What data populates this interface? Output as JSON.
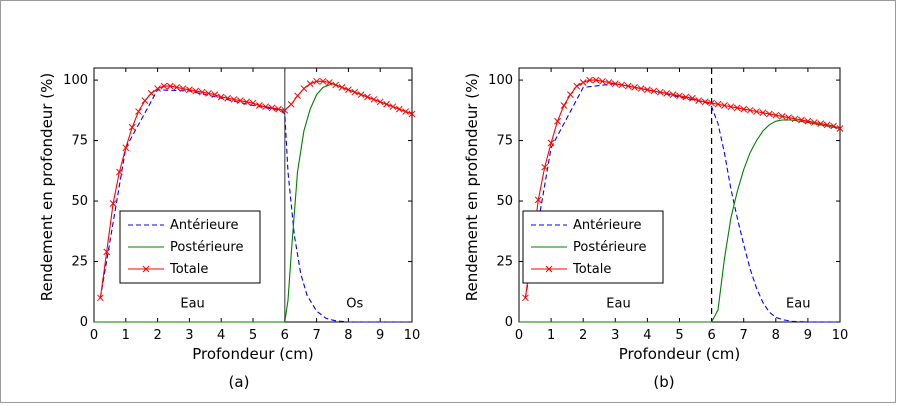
{
  "chart_data": [
    {
      "type": "line",
      "panel_label": "(a)",
      "xlabel": "Profondeur (cm)",
      "ylabel": "Rendement en profondeur (%)",
      "xlim": [
        0,
        10
      ],
      "ylim": [
        0,
        105
      ],
      "xticks": [
        0,
        1,
        2,
        3,
        4,
        5,
        6,
        7,
        8,
        9,
        10
      ],
      "yticks": [
        0,
        25,
        50,
        75,
        100
      ],
      "grid": false,
      "legend_position": "lower-left",
      "interface": {
        "x": 6,
        "style": "solid"
      },
      "region_labels": [
        {
          "text": "Eau",
          "x": 3.1,
          "y": 6
        },
        {
          "text": "Os",
          "x": 8.2,
          "y": 6
        }
      ],
      "series": [
        {
          "name": "Antérieure",
          "color": "#0000ff",
          "style": "dashed",
          "x": [
            0.2,
            1,
            2,
            3,
            4,
            5,
            5.9,
            6.0,
            6.1,
            6.3,
            6.5,
            6.7,
            7.0,
            7.3,
            7.6,
            8.0,
            9.0,
            10.0
          ],
          "y": [
            10,
            72,
            96,
            95.5,
            92.5,
            89.5,
            87.5,
            86,
            62,
            36,
            20,
            11,
            4.5,
            1.5,
            0.5,
            0,
            0,
            0
          ]
        },
        {
          "name": "Postérieure",
          "color": "#007f00",
          "style": "solid",
          "x": [
            0,
            5.9,
            6.0,
            6.1,
            6.2,
            6.4,
            6.6,
            6.8,
            7.0,
            7.2,
            7.5,
            8.0,
            9.0,
            10.0
          ],
          "y": [
            0,
            0,
            0,
            9,
            28,
            62,
            79,
            88,
            94,
            97,
            98.5,
            96,
            91,
            86
          ]
        },
        {
          "name": "Totale",
          "color": "#ff0000",
          "style": "solid-x",
          "x": [
            0.2,
            0.4,
            0.6,
            0.8,
            1.0,
            1.2,
            1.4,
            1.6,
            1.8,
            2.0,
            2.2,
            2.4,
            2.6,
            2.8,
            3.0,
            3.2,
            3.4,
            3.6,
            3.8,
            4.0,
            4.2,
            4.4,
            4.6,
            4.8,
            5.0,
            5.2,
            5.4,
            5.6,
            5.8,
            6.0,
            6.2,
            6.4,
            6.6,
            6.8,
            7.0,
            7.2,
            7.4,
            7.6,
            7.8,
            8.0,
            8.2,
            8.4,
            8.6,
            8.8,
            9.0,
            9.2,
            9.4,
            9.6,
            9.8,
            10.0
          ],
          "y": [
            10,
            29,
            49,
            62,
            72,
            80.5,
            87,
            91.5,
            94.5,
            96.5,
            97.5,
            97.5,
            97,
            96.5,
            96,
            95.5,
            95,
            94.5,
            94,
            93,
            92.5,
            92,
            91.5,
            91,
            90.5,
            89.5,
            89,
            88.5,
            88,
            87.5,
            90,
            93.5,
            96.5,
            98.5,
            99.5,
            99.5,
            99,
            98,
            97,
            96,
            95,
            94,
            93,
            92,
            91,
            90,
            89,
            88,
            87,
            86
          ]
        }
      ]
    },
    {
      "type": "line",
      "panel_label": "(b)",
      "xlabel": "Profondeur (cm)",
      "ylabel": "Rendement en profondeur (%)",
      "xlim": [
        0,
        10
      ],
      "ylim": [
        0,
        105
      ],
      "xticks": [
        0,
        1,
        2,
        3,
        4,
        5,
        6,
        7,
        8,
        9,
        10
      ],
      "yticks": [
        0,
        25,
        50,
        75,
        100
      ],
      "grid": false,
      "legend_position": "lower-left",
      "interface": {
        "x": 6,
        "style": "dashed"
      },
      "region_labels": [
        {
          "text": "Eau",
          "x": 3.1,
          "y": 6
        },
        {
          "text": "Eau",
          "x": 8.7,
          "y": 6
        }
      ],
      "series": [
        {
          "name": "Antérieure",
          "color": "#0000ff",
          "style": "dashed",
          "x": [
            0.2,
            1,
            2,
            3,
            4,
            5,
            5.9,
            6.0,
            6.2,
            6.4,
            6.6,
            6.8,
            7.0,
            7.2,
            7.4,
            7.6,
            7.8,
            8.0,
            8.2,
            8.5,
            9.0,
            10.0
          ],
          "y": [
            10,
            72,
            97,
            98.5,
            96,
            93,
            90.5,
            89,
            82,
            70,
            55,
            43,
            32,
            22,
            14,
            8,
            4,
            2,
            1,
            0.3,
            0,
            0
          ]
        },
        {
          "name": "Postérieure",
          "color": "#007f00",
          "style": "solid",
          "x": [
            0,
            5.9,
            6.0,
            6.2,
            6.4,
            6.6,
            6.8,
            7.0,
            7.2,
            7.4,
            7.6,
            7.8,
            8.0,
            8.2,
            8.5,
            9.0,
            10.0
          ],
          "y": [
            0,
            0,
            0,
            5,
            26,
            43,
            54,
            63,
            70,
            75,
            79,
            81.5,
            83,
            83.5,
            83.5,
            82.5,
            80
          ]
        },
        {
          "name": "Totale",
          "color": "#ff0000",
          "style": "solid-x",
          "x": [
            0.2,
            0.4,
            0.6,
            0.8,
            1.0,
            1.2,
            1.4,
            1.6,
            1.8,
            2.0,
            2.2,
            2.4,
            2.6,
            2.8,
            3.0,
            3.2,
            3.4,
            3.6,
            3.8,
            4.0,
            4.2,
            4.4,
            4.6,
            4.8,
            5.0,
            5.2,
            5.4,
            5.6,
            5.8,
            6.0,
            6.2,
            6.4,
            6.6,
            6.8,
            7.0,
            7.2,
            7.4,
            7.6,
            7.8,
            8.0,
            8.2,
            8.4,
            8.6,
            8.8,
            9.0,
            9.2,
            9.4,
            9.6,
            9.8,
            10.0
          ],
          "y": [
            10,
            29.5,
            50.5,
            64,
            74,
            83,
            89.5,
            94,
            97.5,
            99,
            100,
            100,
            99.5,
            99,
            98.5,
            98,
            97.5,
            97,
            96.5,
            96,
            95.5,
            95,
            94.5,
            94,
            93.5,
            93,
            92.5,
            91.5,
            91,
            90.5,
            90,
            89.5,
            89,
            88.5,
            88,
            87.5,
            87,
            86.5,
            86,
            85.5,
            85,
            84.5,
            84,
            83.5,
            83,
            82.5,
            82,
            81.5,
            81,
            80
          ]
        }
      ]
    }
  ]
}
